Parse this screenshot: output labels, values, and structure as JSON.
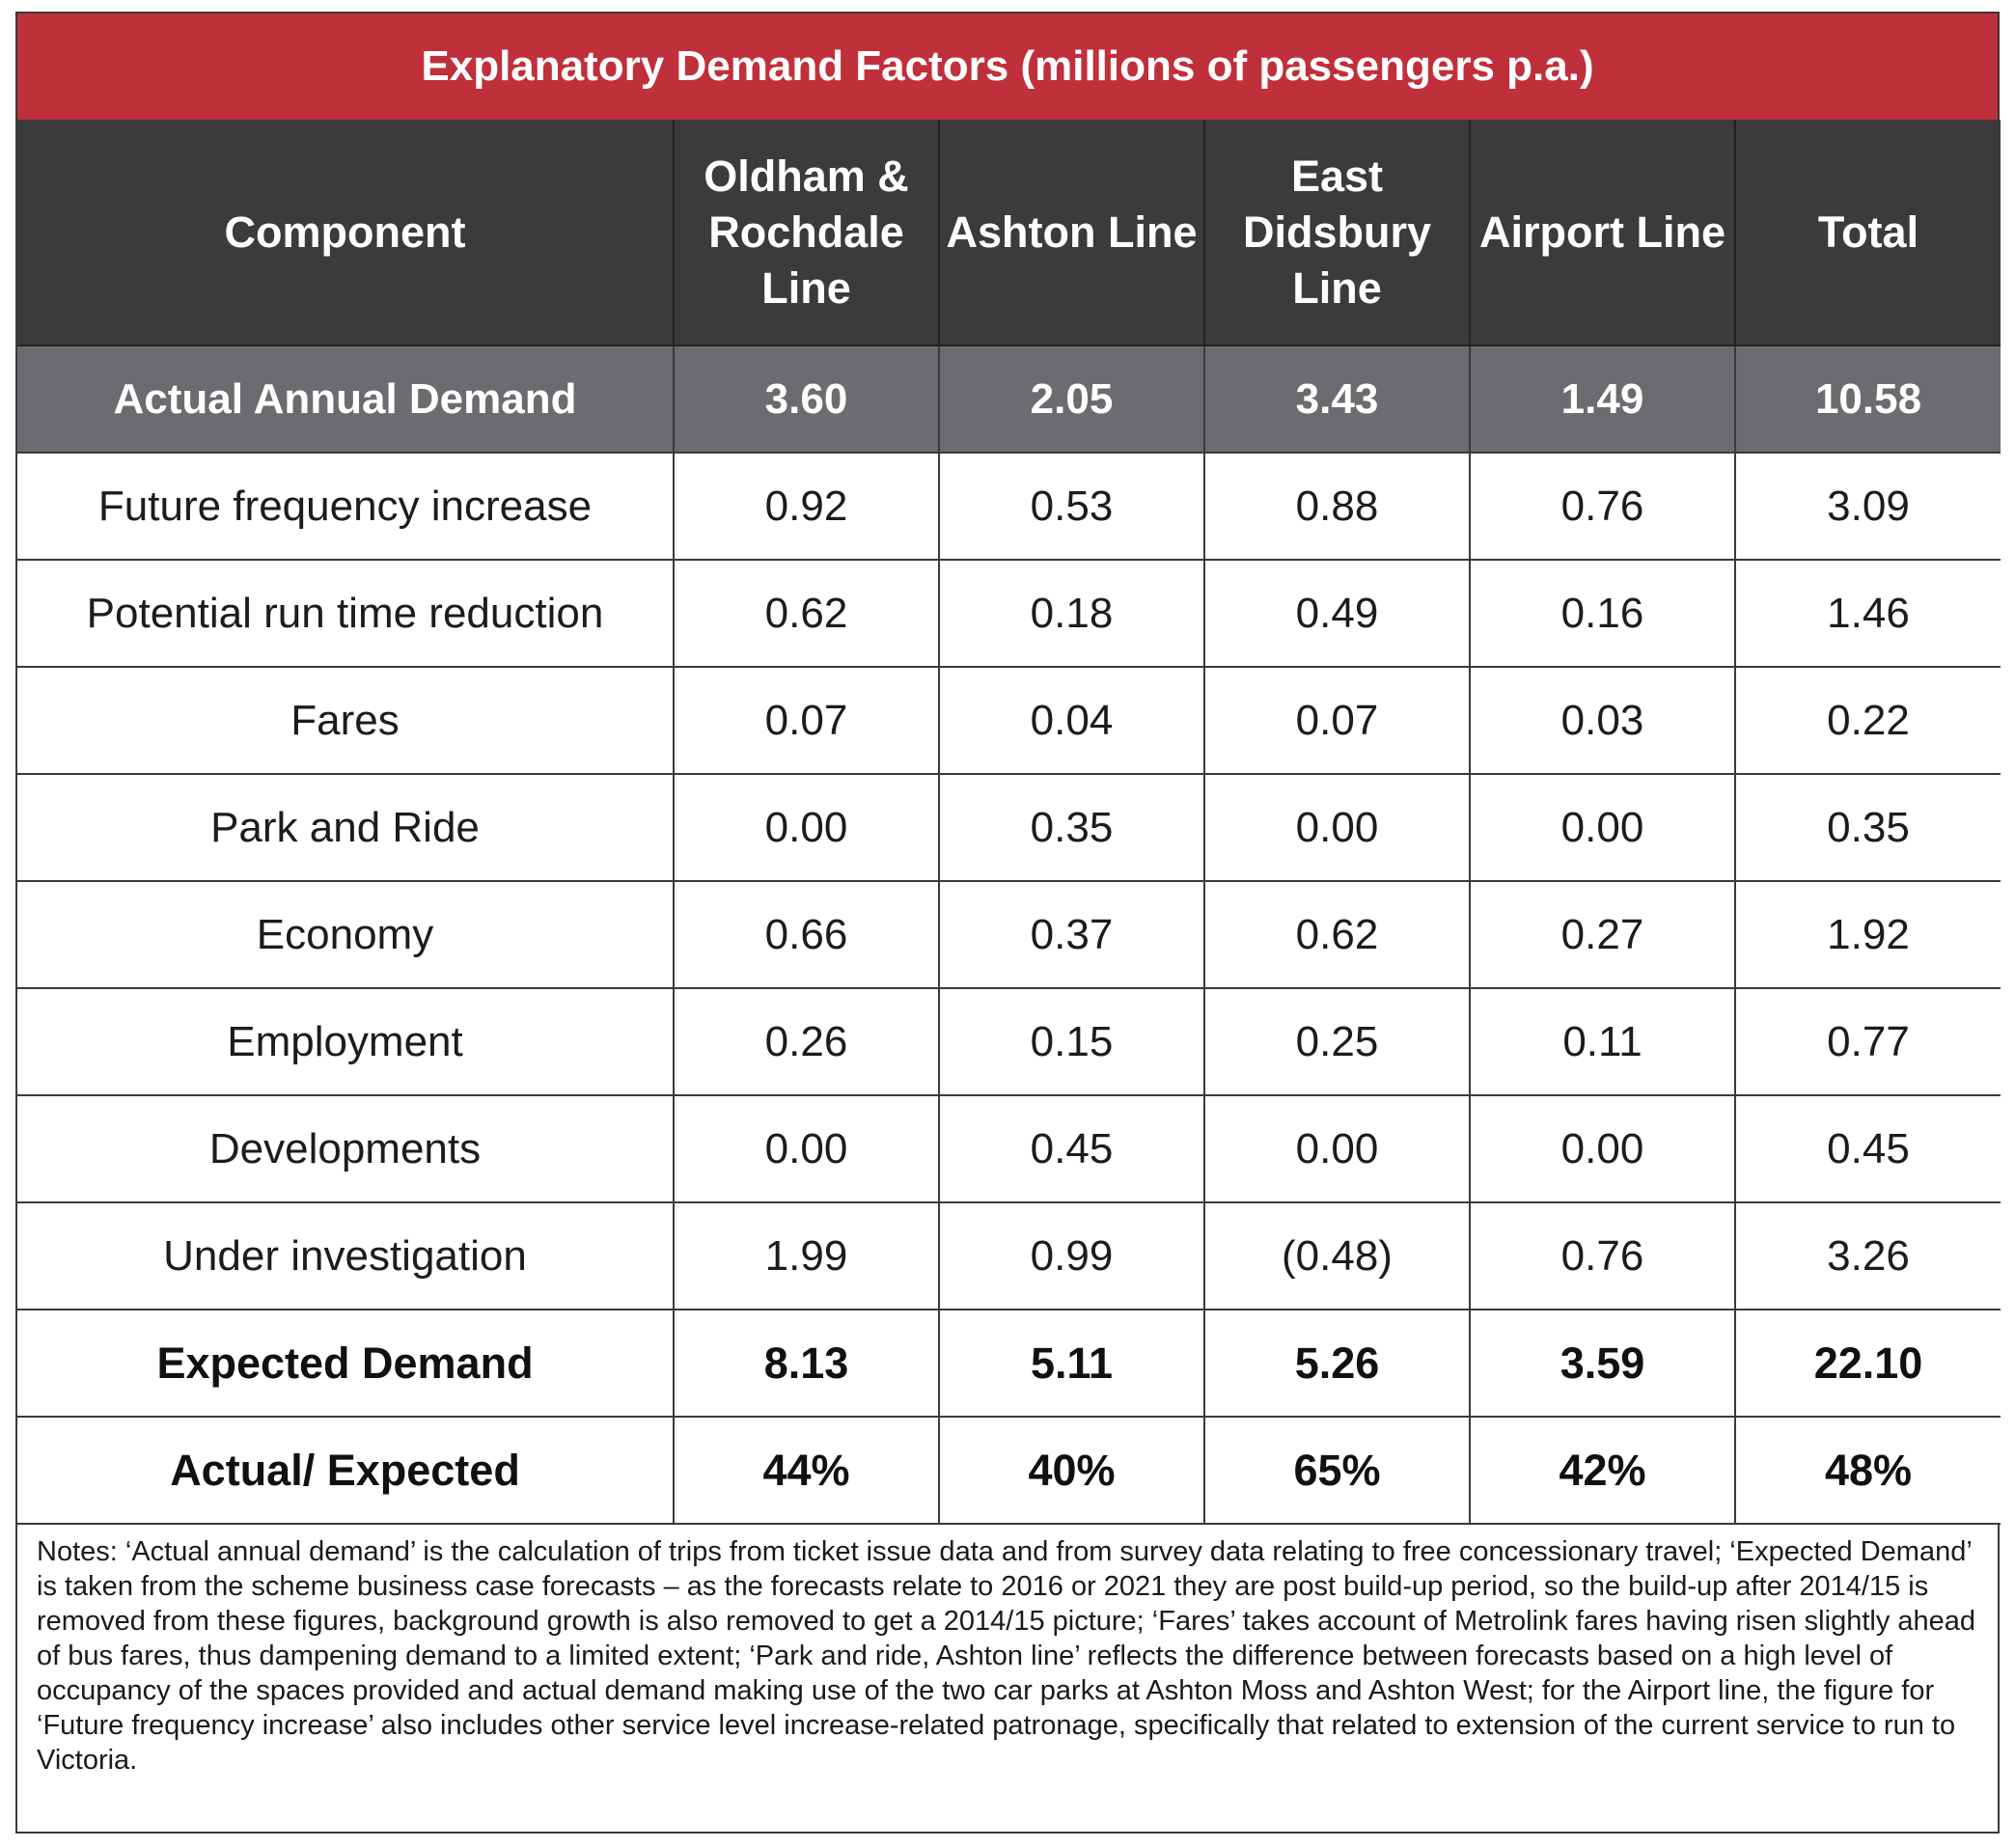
{
  "title": "Explanatory Demand Factors (millions of passengers p.a.)",
  "columns": [
    "Component",
    "Oldham & Rochdale Line",
    "Ashton Line",
    "East Didsbury Line",
    "Airport Line",
    "Total"
  ],
  "actual_row": {
    "label": "Actual Annual Demand",
    "values": [
      "3.60",
      "2.05",
      "3.43",
      "1.49",
      "10.58"
    ]
  },
  "rows": [
    {
      "label": "Future frequency increase",
      "values": [
        "0.92",
        "0.53",
        "0.88",
        "0.76",
        "3.09"
      ]
    },
    {
      "label": "Potential run time reduction",
      "values": [
        "0.62",
        "0.18",
        "0.49",
        "0.16",
        "1.46"
      ]
    },
    {
      "label": "Fares",
      "values": [
        "0.07",
        "0.04",
        "0.07",
        "0.03",
        "0.22"
      ]
    },
    {
      "label": "Park and Ride",
      "values": [
        "0.00",
        "0.35",
        "0.00",
        "0.00",
        "0.35"
      ]
    },
    {
      "label": "Economy",
      "values": [
        "0.66",
        "0.37",
        "0.62",
        "0.27",
        "1.92"
      ]
    },
    {
      "label": "Employment",
      "values": [
        "0.26",
        "0.15",
        "0.25",
        "0.11",
        "0.77"
      ]
    },
    {
      "label": "Developments",
      "values": [
        "0.00",
        "0.45",
        "0.00",
        "0.00",
        "0.45"
      ]
    },
    {
      "label": "Under investigation",
      "values": [
        "1.99",
        "0.99",
        "(0.48)",
        "0.76",
        "3.26"
      ]
    }
  ],
  "expected_row": {
    "label": "Expected Demand",
    "values": [
      "8.13",
      "5.11",
      "5.26",
      "3.59",
      "22.10"
    ]
  },
  "ratio_row": {
    "label": "Actual/ Expected",
    "values": [
      "44%",
      "40%",
      "65%",
      "42%",
      "48%"
    ]
  },
  "notes": "Notes: ‘Actual annual demand’ is the calculation of trips from ticket issue data and from survey data relating to free concessionary travel; ‘Expected Demand’ is taken from the scheme business case forecasts – as the forecasts relate to 2016 or 2021 they are post build-up period, so the build-up after 2014/15 is removed from these figures, background growth is also removed to get a 2014/15 picture; ‘Fares’ takes account of Metrolink fares having risen slightly ahead of bus fares, thus dampening demand to a limited extent; ‘Park and ride, Ashton line’ reflects the difference between forecasts based on a high level of occupancy of the spaces provided and actual demand making use of the two car parks at Ashton Moss and Ashton West; for the Airport line, the figure for ‘Future frequency increase’ also includes other service level increase-related patronage, specifically that related to extension of the current service to run to Victoria.",
  "colors": {
    "title_bg": "#c0303b",
    "header_bg": "#3b3b3d",
    "actual_row_bg": "#6a6c6f",
    "border": "#3a3a3a"
  }
}
